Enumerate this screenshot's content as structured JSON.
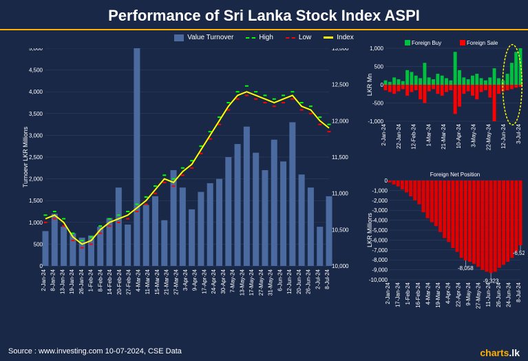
{
  "title": "Performance of Sri Lanka Stock Index ASPI",
  "footer_source": "Source : www.investing.com 10-07-2024, CSE Data",
  "logo": {
    "brand": "charts",
    "tld": ".lk"
  },
  "colors": {
    "background": "#1a2847",
    "accent": "#ffb000",
    "turnover_bar": "#4a6aa0",
    "high": "#00ff00",
    "low": "#ff0000",
    "index": "#ffff00",
    "foreign_buy": "#00c040",
    "foreign_sale": "#ff0000",
    "net_position": "#e00000",
    "grid": "#334466",
    "text": "#ffffff"
  },
  "main_chart": {
    "legend": {
      "turnover": "Value Turnover",
      "high": "High",
      "low": "Low",
      "index": "Index"
    },
    "y1_label": "Turnoevr LKR Millions",
    "y1_ticks": [
      0,
      500,
      1000,
      1500,
      2000,
      2500,
      3000,
      3500,
      4000,
      4500,
      5000
    ],
    "y2_ticks": [
      10000,
      10500,
      11000,
      11500,
      12000,
      12500,
      13000
    ],
    "x_labels": [
      "2-Jan-24",
      "8-Jan-24",
      "13-Jan-24",
      "19-Jan-24",
      "26-Jan-24",
      "1-Feb-24",
      "8-Feb-24",
      "14-Feb-24",
      "20-Feb-24",
      "27-Feb-24",
      "4-Mar-24",
      "11-Mar-24",
      "15-Mar-24",
      "21-Mar-24",
      "27-Mar-24",
      "3-Apr-24",
      "9-Apr-24",
      "17-Apr-24",
      "24-Apr-24",
      "30-Apr-24",
      "7-May-24",
      "13-May-24",
      "17-May-24",
      "27-May-24",
      "31-May-24",
      "6-Jun-24",
      "12-Jun-24",
      "20-Jun-24",
      "26-Jun-24",
      "2-Jul-24",
      "8-Jul-24"
    ],
    "turnover": [
      800,
      1200,
      900,
      750,
      650,
      700,
      900,
      1100,
      1800,
      950,
      5000,
      1400,
      1600,
      1050,
      2200,
      1800,
      1300,
      1700,
      1900,
      2000,
      2500,
      2800,
      3200,
      2600,
      2200,
      2900,
      2400,
      3300,
      2100,
      1800,
      900,
      1600
    ],
    "index": [
      10650,
      10700,
      10600,
      10400,
      10300,
      10350,
      10500,
      10600,
      10650,
      10700,
      10800,
      10900,
      11050,
      11200,
      11150,
      11300,
      11400,
      11600,
      11800,
      12000,
      12200,
      12350,
      12400,
      12350,
      12300,
      12250,
      12300,
      12350,
      12200,
      12150,
      12000,
      11900
    ],
    "high": [
      10700,
      10750,
      10650,
      10450,
      10350,
      10400,
      10550,
      10650,
      10700,
      10750,
      10850,
      10950,
      11100,
      11250,
      11200,
      11350,
      11450,
      11650,
      11850,
      12050,
      12250,
      12400,
      12480,
      12400,
      12350,
      12300,
      12350,
      12400,
      12250,
      12200,
      12050,
      11950
    ],
    "low": [
      10600,
      10650,
      10550,
      10350,
      10250,
      10300,
      10450,
      10550,
      10600,
      10650,
      10750,
      10850,
      11000,
      11150,
      11100,
      11250,
      11350,
      11550,
      11750,
      11950,
      12150,
      12300,
      12350,
      12300,
      12250,
      12200,
      12250,
      12300,
      12150,
      12100,
      11950,
      11850
    ]
  },
  "foreign_flow": {
    "legend": {
      "buy": "Foreign Buy",
      "sale": "Foreign Sale"
    },
    "y_label": "LKR Mn",
    "y_ticks": [
      -1000,
      -500,
      0,
      500,
      1000
    ],
    "x_labels": [
      "2-Jan-24",
      "22-Jan-24",
      "12-Feb-24",
      "1-Mar-24",
      "21-Mar-24",
      "10-Apr-24",
      "3-May-24",
      "22-May-24",
      "12-Jun-24",
      "3-Jul-24"
    ],
    "buy": [
      120,
      80,
      200,
      150,
      100,
      400,
      350,
      250,
      180,
      600,
      200,
      150,
      300,
      250,
      180,
      120,
      900,
      400,
      200,
      150,
      250,
      300,
      180,
      120,
      200,
      450,
      180,
      120,
      300,
      600,
      900,
      1000
    ],
    "sale": [
      -150,
      -200,
      -250,
      -180,
      -120,
      -300,
      -200,
      -150,
      -400,
      -500,
      -180,
      -120,
      -250,
      -300,
      -200,
      -150,
      -800,
      -600,
      -250,
      -180,
      -300,
      -400,
      -200,
      -150,
      -350,
      -1000,
      -250,
      -180,
      -150,
      -120,
      -80,
      -60
    ]
  },
  "net_position": {
    "title": "Foreign Net Position",
    "y_label": "LKR Millions",
    "y_ticks": [
      -10000,
      -9000,
      -8000,
      -7000,
      -6000,
      -5000,
      -4000,
      -3000,
      -2000,
      -1000,
      0
    ],
    "x_labels": [
      "2-Jan-24",
      "17-Jan-24",
      "1-Feb-24",
      "16-Feb-24",
      "4-Mar-24",
      "19-Mar-24",
      "4-Apr-24",
      "22-Apr-24",
      "9-May-24",
      "27-May-24",
      "11-Jun-24",
      "26-Jun-24",
      "24-Jun-24",
      "8-Jul-24"
    ],
    "values": [
      -200,
      -400,
      -600,
      -900,
      -1200,
      -1600,
      -2000,
      -2400,
      -3200,
      -3800,
      -4200,
      -4600,
      -5200,
      -5800,
      -6200,
      -6800,
      -7200,
      -7800,
      -8058,
      -8200,
      -8400,
      -8700,
      -9000,
      -9200,
      -9323,
      -9200,
      -8800,
      -8500,
      -8200,
      -7800,
      -7200,
      -6529
    ],
    "annotations": [
      {
        "label": "-8,058",
        "idx": 18
      },
      {
        "label": "-9,323",
        "idx": 24
      },
      {
        "label": "-6,529",
        "idx": 31
      }
    ]
  }
}
